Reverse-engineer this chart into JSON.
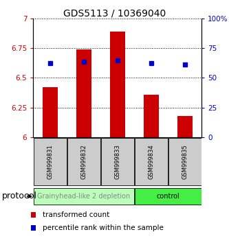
{
  "title": "GDS5113 / 10369040",
  "samples": [
    "GSM999831",
    "GSM999832",
    "GSM999833",
    "GSM999834",
    "GSM999835"
  ],
  "bar_values": [
    6.42,
    6.74,
    6.89,
    6.36,
    6.18
  ],
  "dot_values": [
    6.62,
    6.635,
    6.645,
    6.62,
    6.61
  ],
  "ylim_left": [
    6.0,
    7.0
  ],
  "ylim_right": [
    0,
    100
  ],
  "yticks_left": [
    6.0,
    6.25,
    6.5,
    6.75,
    7.0
  ],
  "yticks_right": [
    0,
    25,
    50,
    75,
    100
  ],
  "ytick_labels_left": [
    "6",
    "6.25",
    "6.5",
    "6.75",
    "7"
  ],
  "ytick_labels_right": [
    "0",
    "25",
    "50",
    "75",
    "100%"
  ],
  "bar_color": "#cc0000",
  "dot_color": "#0000cc",
  "bar_bottom": 6.0,
  "groups": [
    {
      "label": "Grainyhead-like 2 depletion",
      "indices": [
        0,
        1,
        2
      ],
      "color": "#bbffbb",
      "text_color": "#888888"
    },
    {
      "label": "control",
      "indices": [
        3,
        4
      ],
      "color": "#44ee44",
      "text_color": "#000000"
    }
  ],
  "protocol_label": "protocol",
  "legend_items": [
    {
      "color": "#cc0000",
      "label": "transformed count"
    },
    {
      "color": "#0000cc",
      "label": "percentile rank within the sample"
    }
  ],
  "sample_box_color": "#cccccc",
  "background_color": "#ffffff",
  "tick_label_color_left": "#cc0000",
  "tick_label_color_right": "#0000cc",
  "title_fontsize": 10,
  "tick_fontsize": 7.5,
  "sample_fontsize": 6,
  "group_fontsize": 7,
  "legend_fontsize": 7.5,
  "protocol_fontsize": 9
}
